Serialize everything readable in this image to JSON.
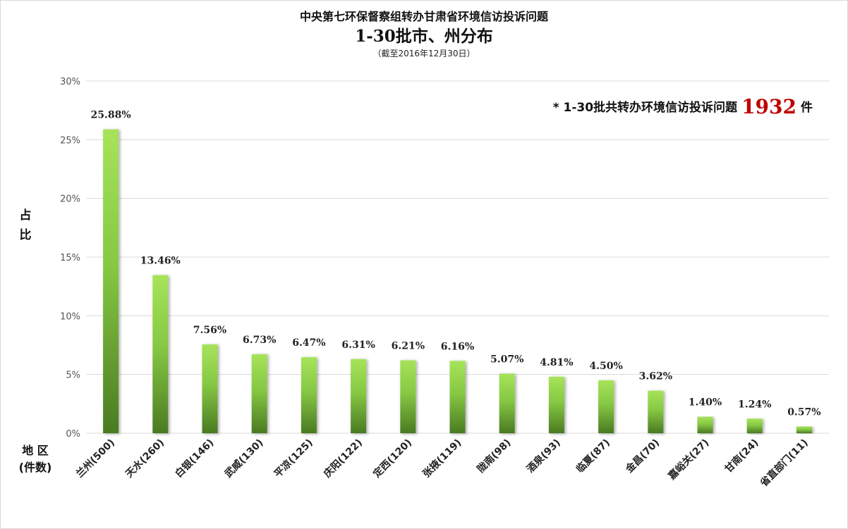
{
  "chart_data": {
    "type": "bar",
    "title": "中央第七环保督察组转办甘肃省环境信访投诉问题",
    "subtitle": "1-30批市、州分布",
    "date_note": "（截至2016年12月30日）",
    "ylabel": "占比",
    "xlabel_line1": "地  区",
    "xlabel_line2": "(件数)",
    "note_prefix": "*  1-30批共转办环境信访投诉问题",
    "note_total": "1932",
    "note_suffix": "件",
    "ylim": [
      0,
      30
    ],
    "yticks": [
      "0%",
      "5%",
      "10%",
      "15%",
      "20%",
      "25%",
      "30%"
    ],
    "grid": true,
    "categories": [
      "兰州(500)",
      "天水(260)",
      "白银(146)",
      "武威(130)",
      "平凉(125)",
      "庆阳(122)",
      "定西(120)",
      "张掖(119)",
      "陇南(98)",
      "酒泉(93)",
      "临夏(87)",
      "金昌(70)",
      "嘉峪关(27)",
      "甘南(24)",
      "省直部门(11)"
    ],
    "values": [
      25.88,
      13.46,
      7.56,
      6.73,
      6.47,
      6.31,
      6.21,
      6.16,
      5.07,
      4.81,
      4.5,
      3.62,
      1.4,
      1.24,
      0.57
    ],
    "value_labels": [
      "25.88%",
      "13.46%",
      "7.56%",
      "6.73%",
      "6.47%",
      "6.31%",
      "6.21%",
      "6.16%",
      "5.07%",
      "4.81%",
      "4.50%",
      "3.62%",
      "1.40%",
      "1.24%",
      "0.57%"
    ],
    "colors": {
      "bar_top": "#a6e35a",
      "bar_bottom": "#4a7a22",
      "grid": "#d9d9d9"
    }
  }
}
